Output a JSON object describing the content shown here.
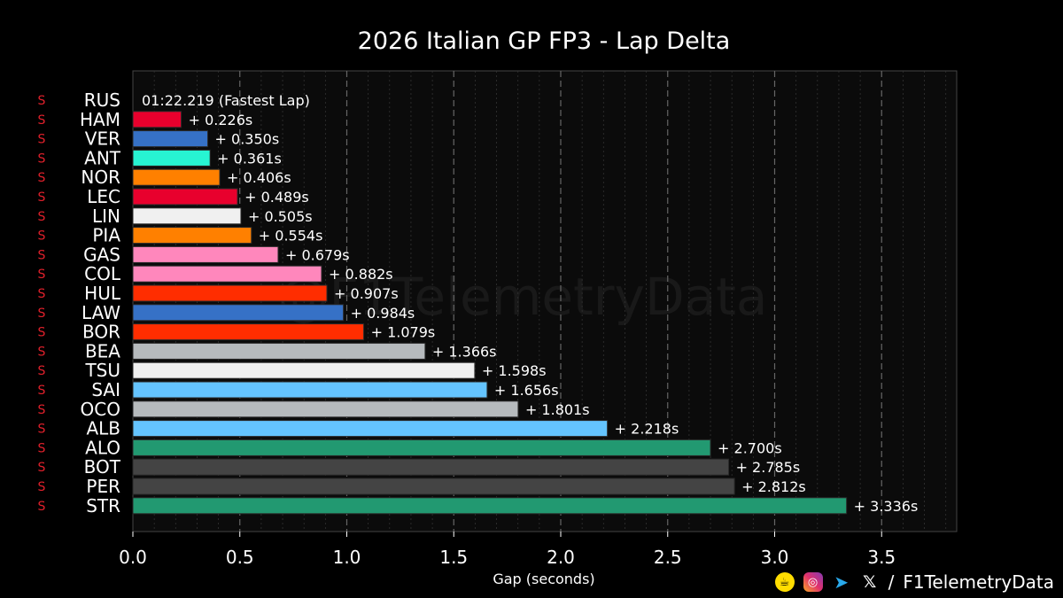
{
  "chart_data": {
    "type": "bar",
    "orientation": "horizontal",
    "title": "2026 Italian GP FP3 - Lap Delta",
    "xlabel": "Gap (seconds)",
    "xlim": [
      0,
      3.85
    ],
    "xticks": [
      "0.0",
      "0.5",
      "1.0",
      "1.5",
      "2.0",
      "2.5",
      "3.0",
      "3.5"
    ],
    "xtick_values": [
      0,
      0.5,
      1.0,
      1.5,
      2.0,
      2.5,
      3.0,
      3.5
    ],
    "tyre_label": "S",
    "fastest_label": "01:22.219 (Fastest Lap)",
    "bars": [
      {
        "driver": "RUS",
        "gap": 0,
        "label": "",
        "color": "#27f4d2"
      },
      {
        "driver": "HAM",
        "gap": 0.226,
        "label": "+ 0.226s",
        "color": "#e8002d"
      },
      {
        "driver": "VER",
        "gap": 0.35,
        "label": "+ 0.350s",
        "color": "#3671c6"
      },
      {
        "driver": "ANT",
        "gap": 0.361,
        "label": "+ 0.361s",
        "color": "#27f4d2"
      },
      {
        "driver": "NOR",
        "gap": 0.406,
        "label": "+ 0.406s",
        "color": "#ff8000"
      },
      {
        "driver": "LEC",
        "gap": 0.489,
        "label": "+ 0.489s",
        "color": "#e8002d"
      },
      {
        "driver": "LIN",
        "gap": 0.505,
        "label": "+ 0.505s",
        "color": "#f0f0f0"
      },
      {
        "driver": "PIA",
        "gap": 0.554,
        "label": "+ 0.554s",
        "color": "#ff8000"
      },
      {
        "driver": "GAS",
        "gap": 0.679,
        "label": "+ 0.679s",
        "color": "#ff87bc"
      },
      {
        "driver": "COL",
        "gap": 0.882,
        "label": "+ 0.882s",
        "color": "#ff87bc"
      },
      {
        "driver": "HUL",
        "gap": 0.907,
        "label": "+ 0.907s",
        "color": "#ff2d00"
      },
      {
        "driver": "LAW",
        "gap": 0.984,
        "label": "+ 0.984s",
        "color": "#3671c6"
      },
      {
        "driver": "BOR",
        "gap": 1.079,
        "label": "+ 1.079s",
        "color": "#ff2d00"
      },
      {
        "driver": "BEA",
        "gap": 1.366,
        "label": "+ 1.366s",
        "color": "#b6babd"
      },
      {
        "driver": "TSU",
        "gap": 1.598,
        "label": "+ 1.598s",
        "color": "#f0f0f0"
      },
      {
        "driver": "SAI",
        "gap": 1.656,
        "label": "+ 1.656s",
        "color": "#64c4ff"
      },
      {
        "driver": "OCO",
        "gap": 1.801,
        "label": "+ 1.801s",
        "color": "#b6babd"
      },
      {
        "driver": "ALB",
        "gap": 2.218,
        "label": "+ 2.218s",
        "color": "#64c4ff"
      },
      {
        "driver": "ALO",
        "gap": 2.7,
        "label": "+ 2.700s",
        "color": "#229971"
      },
      {
        "driver": "BOT",
        "gap": 2.785,
        "label": "+ 2.785s",
        "color": "#444444"
      },
      {
        "driver": "PER",
        "gap": 2.812,
        "label": "+ 2.812s",
        "color": "#444444"
      },
      {
        "driver": "STR",
        "gap": 3.336,
        "label": "+ 3.336s",
        "color": "#229971"
      }
    ],
    "grid": true,
    "watermark": "@F1TelemetryData"
  },
  "footer": {
    "separator": "/",
    "handle": "F1TelemetryData",
    "icons": [
      "buymeacoffee-icon",
      "instagram-icon",
      "telegram-icon",
      "x-icon"
    ]
  }
}
